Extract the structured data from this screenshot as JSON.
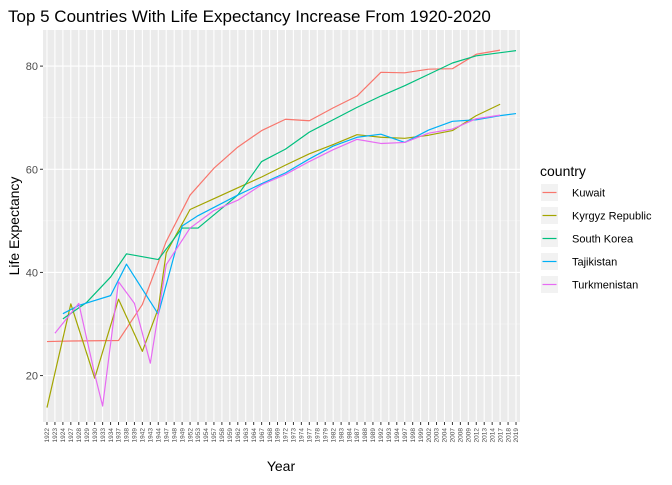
{
  "chart_data": {
    "type": "line",
    "title": "Top 5 Countries With Life Expectancy Increase From 1920-2020",
    "xlabel": "Year",
    "ylabel": "Life Expectancy",
    "x_is_discrete": true,
    "ylim": [
      11,
      87
    ],
    "yticks": [
      20,
      40,
      60,
      80
    ],
    "grid": true,
    "legend_position": "right",
    "legend_title": "country",
    "categories": [
      "1922",
      "1923",
      "1924",
      "1927",
      "1928",
      "1929",
      "1930",
      "1933",
      "1934",
      "1937",
      "1938",
      "1939",
      "1942",
      "1943",
      "1944",
      "1947",
      "1948",
      "1949",
      "1952",
      "1953",
      "1954",
      "1957",
      "1958",
      "1959",
      "1962",
      "1963",
      "1964",
      "1967",
      "1968",
      "1969",
      "1972",
      "1973",
      "1974",
      "1977",
      "1978",
      "1979",
      "1982",
      "1983",
      "1984",
      "1987",
      "1988",
      "1989",
      "1992",
      "1993",
      "1994",
      "1997",
      "1998",
      "1999",
      "2002",
      "2003",
      "2004",
      "2007",
      "2008",
      "2009",
      "2012",
      "2013",
      "2014",
      "2017",
      "2018",
      "2019"
    ],
    "series": [
      {
        "name": "Kuwait",
        "color": "#F8766D",
        "points": [
          [
            "1922",
            26.6
          ],
          [
            "1927",
            26.7
          ],
          [
            "1937",
            26.8
          ],
          [
            "1942",
            33.8
          ],
          [
            "1947",
            46.0
          ],
          [
            "1952",
            55.0
          ],
          [
            "1957",
            60.2
          ],
          [
            "1962",
            64.3
          ],
          [
            "1967",
            67.5
          ],
          [
            "1972",
            69.7
          ],
          [
            "1977",
            69.4
          ],
          [
            "1982",
            71.9
          ],
          [
            "1987",
            74.2
          ],
          [
            "1992",
            78.8
          ],
          [
            "1997",
            78.7
          ],
          [
            "2002",
            79.4
          ],
          [
            "2007",
            79.5
          ],
          [
            "2012",
            82.3
          ],
          [
            "2017",
            83.1
          ]
        ]
      },
      {
        "name": "Kyrgyz Republic",
        "color": "#A3A500",
        "points": [
          [
            "1922",
            13.8
          ],
          [
            "1927",
            33.9
          ],
          [
            "1930",
            19.5
          ],
          [
            "1937",
            34.8
          ],
          [
            "1942",
            24.7
          ],
          [
            "1944",
            33.0
          ],
          [
            "1947",
            43.8
          ],
          [
            "1952",
            52.2
          ],
          [
            "1957",
            54.3
          ],
          [
            "1962",
            56.4
          ],
          [
            "1967",
            58.5
          ],
          [
            "1972",
            60.8
          ],
          [
            "1977",
            63.0
          ],
          [
            "1982",
            64.8
          ],
          [
            "1987",
            66.7
          ],
          [
            "1992",
            66.2
          ],
          [
            "1997",
            66.0
          ],
          [
            "2002",
            66.6
          ],
          [
            "2007",
            67.5
          ],
          [
            "2012",
            70.4
          ],
          [
            "2017",
            72.6
          ]
        ]
      },
      {
        "name": "South Korea",
        "color": "#00BF7D",
        "points": [
          [
            "1924",
            31.0
          ],
          [
            "1929",
            34.2
          ],
          [
            "1934",
            39.1
          ],
          [
            "1938",
            43.6
          ],
          [
            "1944",
            42.5
          ],
          [
            "1949",
            48.6
          ],
          [
            "1953",
            48.6
          ],
          [
            "1962",
            55.0
          ],
          [
            "1967",
            61.5
          ],
          [
            "1972",
            63.9
          ],
          [
            "1977",
            67.2
          ],
          [
            "1982",
            69.6
          ],
          [
            "1987",
            72.0
          ],
          [
            "1992",
            74.2
          ],
          [
            "1997",
            76.2
          ],
          [
            "2002",
            78.4
          ],
          [
            "2007",
            80.6
          ],
          [
            "2012",
            82.0
          ],
          [
            "2019",
            83.0
          ]
        ]
      },
      {
        "name": "Tajikistan",
        "color": "#00B0F6",
        "points": [
          [
            "1924",
            32.0
          ],
          [
            "1928",
            33.6
          ],
          [
            "1934",
            35.5
          ],
          [
            "1938",
            41.6
          ],
          [
            "1944",
            31.9
          ],
          [
            "1949",
            49.0
          ],
          [
            "1953",
            51.0
          ],
          [
            "1962",
            55.0
          ],
          [
            "1967",
            57.2
          ],
          [
            "1972",
            59.3
          ],
          [
            "1977",
            62.0
          ],
          [
            "1982",
            64.5
          ],
          [
            "1987",
            66.2
          ],
          [
            "1992",
            66.8
          ],
          [
            "1997",
            65.2
          ],
          [
            "2002",
            67.6
          ],
          [
            "2007",
            69.3
          ],
          [
            "2012",
            69.6
          ],
          [
            "2017",
            70.4
          ],
          [
            "2019",
            70.8
          ]
        ]
      },
      {
        "name": "Turkmenistan",
        "color": "#E76BF3",
        "points": [
          [
            "1923",
            28.2
          ],
          [
            "1928",
            34.0
          ],
          [
            "1930",
            20.3
          ],
          [
            "1933",
            14.1
          ],
          [
            "1937",
            38.2
          ],
          [
            "1939",
            34.0
          ],
          [
            "1943",
            22.4
          ],
          [
            "1947",
            41.5
          ],
          [
            "1952",
            48.6
          ],
          [
            "1957",
            52.0
          ],
          [
            "1962",
            54.0
          ],
          [
            "1967",
            57.0
          ],
          [
            "1972",
            59.0
          ],
          [
            "1977",
            61.5
          ],
          [
            "1982",
            63.8
          ],
          [
            "1987",
            65.8
          ],
          [
            "1992",
            65.0
          ],
          [
            "1997",
            65.2
          ],
          [
            "2002",
            67.0
          ],
          [
            "2007",
            67.8
          ],
          [
            "2012",
            69.8
          ],
          [
            "2017",
            70.5
          ]
        ]
      }
    ]
  }
}
